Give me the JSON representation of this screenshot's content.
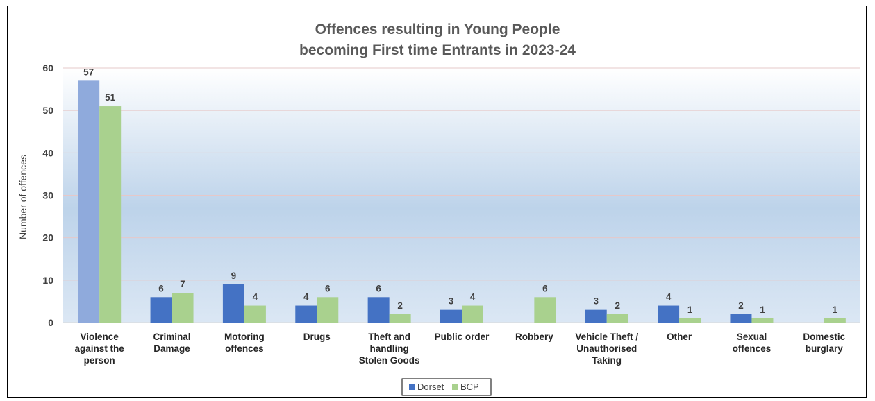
{
  "chart_data": {
    "type": "bar",
    "title_lines": [
      "Offences resulting in Young People",
      "becoming First time Entrants in 2023-24"
    ],
    "xlabel": "",
    "ylabel": "Number of offences",
    "ylim": [
      0,
      60
    ],
    "yticks": [
      "0",
      "10",
      "20",
      "30",
      "40",
      "50",
      "60"
    ],
    "grid": true,
    "legend_position": "bottom",
    "categories": [
      [
        "Violence",
        "against the",
        "person"
      ],
      [
        "Criminal",
        "Damage"
      ],
      [
        "Motoring",
        "offences"
      ],
      [
        "Drugs"
      ],
      [
        "Theft and",
        "handling",
        "Stolen Goods"
      ],
      [
        "Public order"
      ],
      [
        "Robbery"
      ],
      [
        "Vehicle Theft /",
        "Unauthorised",
        "Taking"
      ],
      [
        "Other"
      ],
      [
        "Sexual",
        "offences"
      ],
      [
        "Domestic",
        "burglary"
      ]
    ],
    "series": [
      {
        "name": "Dorset",
        "color": "#4472C4",
        "values": [
          57,
          6,
          9,
          4,
          6,
          3,
          null,
          3,
          4,
          2,
          null
        ],
        "labels": [
          "57",
          "6",
          "9",
          "4",
          "6",
          "3",
          "",
          "3",
          "4",
          "2",
          ""
        ]
      },
      {
        "name": "BCP",
        "color": "#A9D18E",
        "values": [
          51,
          7,
          4,
          6,
          2,
          4,
          6,
          2,
          1,
          1,
          1
        ],
        "labels": [
          "51",
          "7",
          "4",
          "6",
          "2",
          "4",
          "6",
          "2",
          "1",
          "1",
          "1"
        ]
      }
    ],
    "highlight": {
      "category_index": 0,
      "colors": [
        "#8FAADC",
        "#A9D18E"
      ]
    }
  }
}
